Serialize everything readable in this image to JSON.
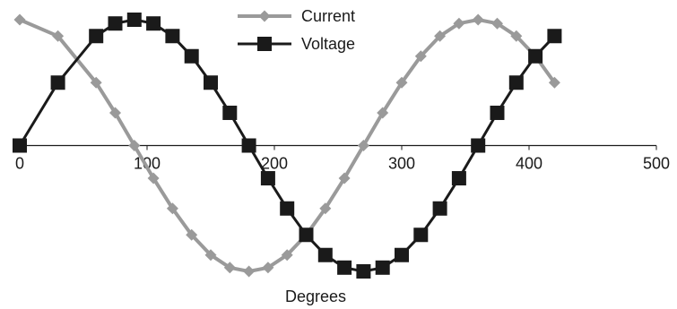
{
  "chart_data": {
    "type": "line",
    "title": "",
    "xlabel": "Degrees",
    "ylabel": "",
    "xlim": [
      0,
      500
    ],
    "ylim": [
      -1,
      1
    ],
    "xticks": [
      "0",
      "100",
      "200",
      "300",
      "400",
      "500"
    ],
    "grid": false,
    "legend": "top-center",
    "series": [
      {
        "name": "Current",
        "marker": "diamond",
        "color": "#9a9a9a",
        "x": [
          0,
          30,
          60,
          75,
          90,
          105,
          120,
          135,
          150,
          165,
          180,
          195,
          210,
          225,
          240,
          255,
          270,
          285,
          300,
          315,
          330,
          345,
          360,
          375,
          390,
          405,
          420
        ],
        "y": [
          1.0,
          0.87,
          0.5,
          0.26,
          0.0,
          -0.26,
          -0.5,
          -0.71,
          -0.87,
          -0.97,
          -1.0,
          -0.97,
          -0.87,
          -0.71,
          -0.5,
          -0.26,
          0.0,
          0.26,
          0.5,
          0.71,
          0.87,
          0.97,
          1.0,
          0.97,
          0.87,
          0.71,
          0.5
        ]
      },
      {
        "name": "Voltage",
        "marker": "square",
        "color": "#1a1a1a",
        "x": [
          0,
          30,
          60,
          75,
          90,
          105,
          120,
          135,
          150,
          165,
          180,
          195,
          210,
          225,
          240,
          255,
          270,
          285,
          300,
          315,
          330,
          345,
          360,
          375,
          390,
          405,
          420
        ],
        "y": [
          0.0,
          0.5,
          0.87,
          0.97,
          1.0,
          0.97,
          0.87,
          0.71,
          0.5,
          0.26,
          0.0,
          -0.26,
          -0.5,
          -0.71,
          -0.87,
          -0.97,
          -1.0,
          -0.97,
          -0.87,
          -0.71,
          -0.5,
          -0.26,
          0.0,
          0.26,
          0.5,
          0.71,
          0.87
        ]
      }
    ]
  }
}
